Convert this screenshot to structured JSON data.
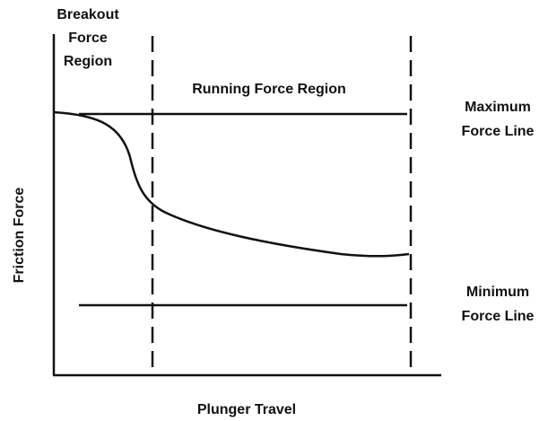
{
  "labels": {
    "breakout": [
      "Breakout",
      "Force",
      "Region"
    ],
    "running": "Running Force Region",
    "maximum": [
      "Maximum",
      "Force Line"
    ],
    "minimum": [
      "Minimum",
      "Force Line"
    ],
    "y_axis": "Friction Force",
    "x_axis": "Plunger Travel"
  }
}
